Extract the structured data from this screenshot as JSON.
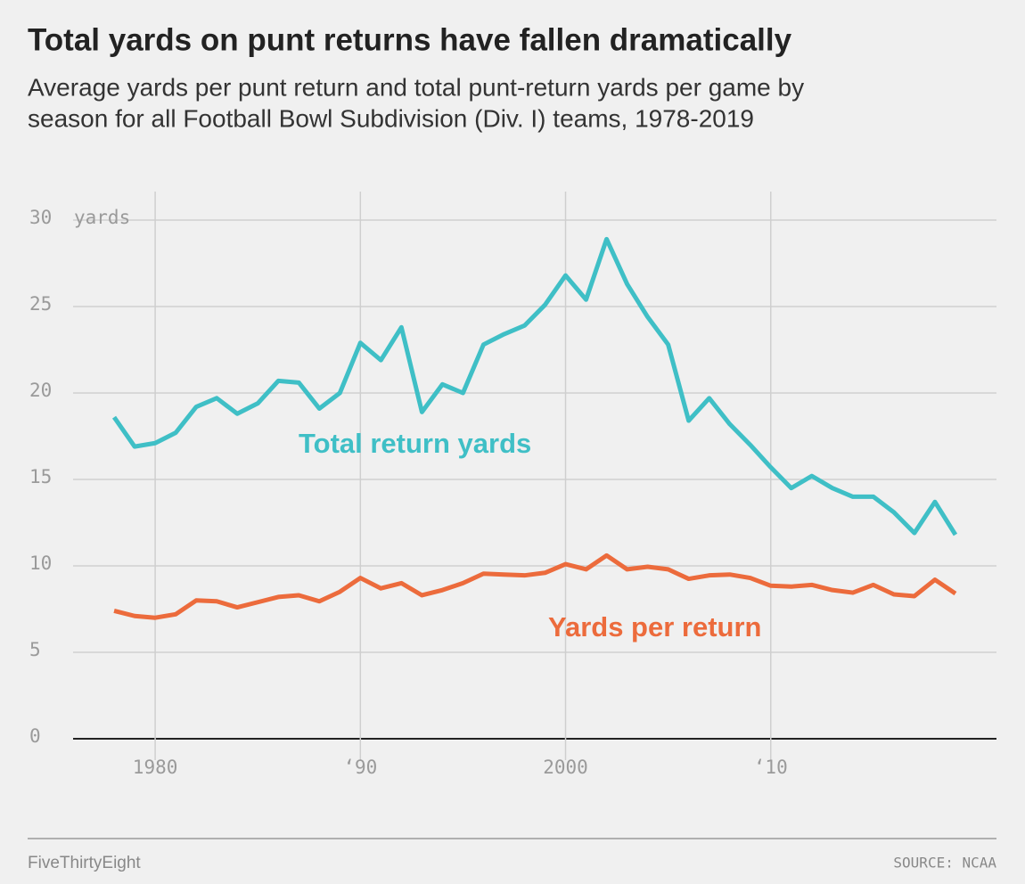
{
  "chart_data": {
    "type": "line",
    "title": "Total yards on punt returns have fallen dramatically",
    "subtitle": [
      "Average yards per punt return and total punt-return yards per game by",
      "season for all Football Bowl Subdivision (Div. I) teams, 1978-2019"
    ],
    "y_unit": "yards",
    "x": [
      1978,
      1979,
      1980,
      1981,
      1982,
      1983,
      1984,
      1985,
      1986,
      1987,
      1988,
      1989,
      1990,
      1991,
      1992,
      1993,
      1994,
      1995,
      1996,
      1997,
      1998,
      1999,
      2000,
      2001,
      2002,
      2003,
      2004,
      2005,
      2006,
      2007,
      2008,
      2009,
      2010,
      2011,
      2012,
      2013,
      2014,
      2015,
      2016,
      2017,
      2018,
      2019
    ],
    "series": [
      {
        "name": "Total return yards",
        "color": "#3fbfc6",
        "values": [
          18.6,
          16.9,
          17.1,
          17.7,
          19.2,
          19.7,
          18.8,
          19.4,
          20.7,
          20.6,
          19.1,
          20.0,
          22.9,
          21.9,
          23.8,
          18.9,
          20.5,
          20.0,
          22.8,
          23.4,
          23.9,
          25.1,
          26.8,
          25.4,
          28.9,
          26.3,
          24.4,
          22.8,
          18.4,
          19.7,
          18.2,
          17.0,
          15.7,
          14.5,
          15.2,
          14.5,
          14.0,
          14.0,
          13.1,
          11.9,
          13.7,
          11.8
        ]
      },
      {
        "name": "Yards per return",
        "color": "#ec6b3c",
        "values": [
          7.4,
          7.1,
          7.0,
          7.2,
          8.0,
          7.95,
          7.6,
          7.9,
          8.2,
          8.3,
          7.95,
          8.5,
          9.3,
          8.7,
          9.0,
          8.3,
          8.6,
          9.0,
          9.55,
          9.5,
          9.45,
          9.6,
          10.1,
          9.8,
          10.6,
          9.8,
          9.95,
          9.8,
          9.25,
          9.45,
          9.5,
          9.3,
          8.85,
          8.8,
          8.9,
          8.6,
          8.45,
          8.9,
          8.35,
          8.25,
          9.2,
          8.4
        ]
      }
    ],
    "xlim": [
      1976,
      2021
    ],
    "ylim": [
      0,
      30
    ],
    "xticks": [
      1980,
      {
        "value": 1990,
        "label": "‘90"
      },
      2000,
      {
        "value": 2010,
        "label": "‘10"
      }
    ],
    "yticks": [
      0,
      5,
      10,
      15,
      20,
      25,
      30
    ],
    "grid": true,
    "footer": {
      "brand": "FiveThirtyEight",
      "source": "SOURCE: NCAA"
    }
  }
}
